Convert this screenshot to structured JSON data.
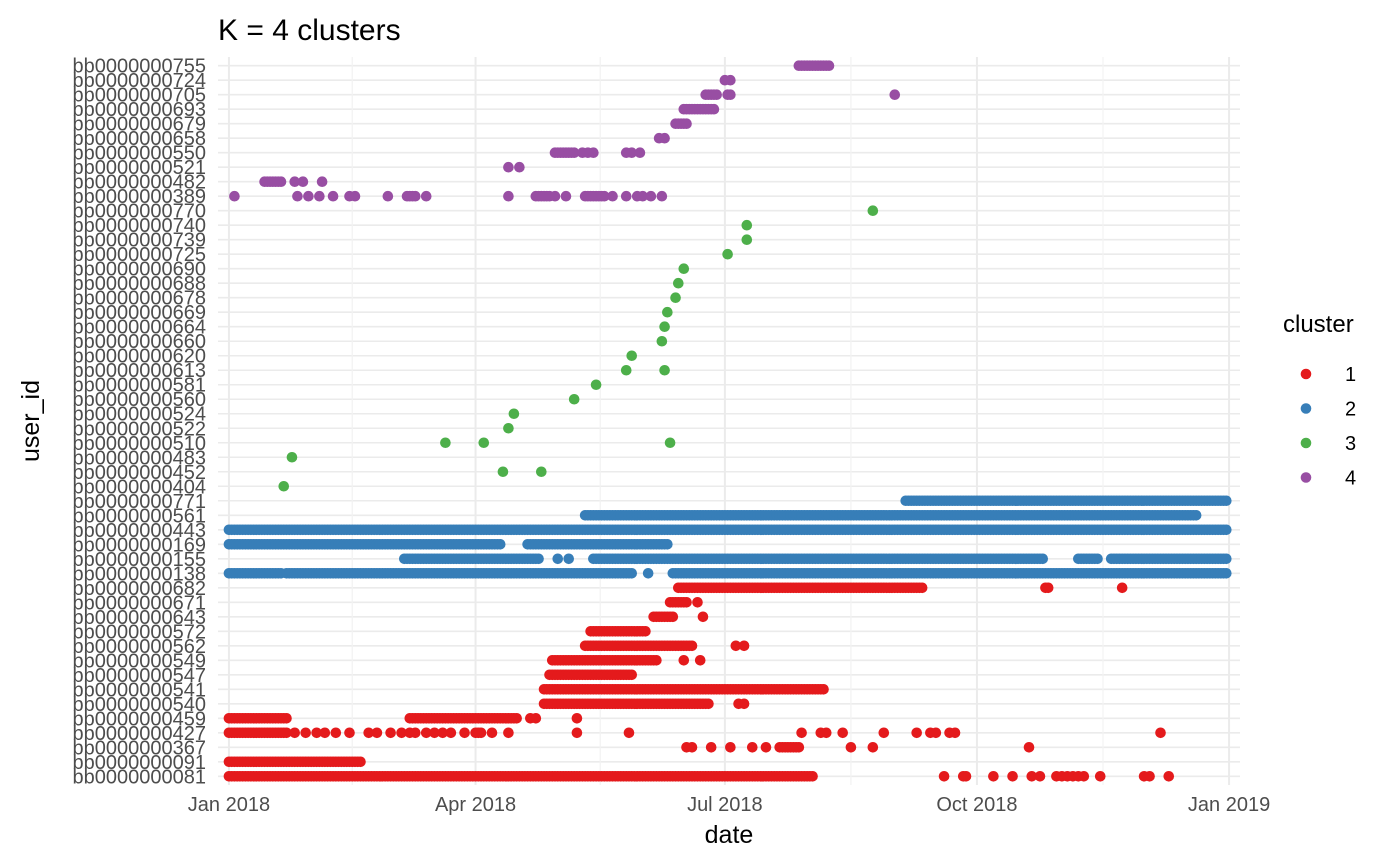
{
  "chart_data": {
    "type": "scatter",
    "title": "K = 4 clusters",
    "xlabel": "date",
    "ylabel": "user_id",
    "x_type": "date",
    "xlim": [
      "2017-12-28",
      "2019-01-05"
    ],
    "x_ticks": [
      {
        "date": "2018-01-01",
        "label": "Jan 2018"
      },
      {
        "date": "2018-04-01",
        "label": "Apr 2018"
      },
      {
        "date": "2018-07-01",
        "label": "Jul 2018"
      },
      {
        "date": "2018-10-01",
        "label": "Oct 2018"
      },
      {
        "date": "2019-01-01",
        "label": "Jan 2019"
      }
    ],
    "grid": true,
    "legend": {
      "title": "cluster",
      "position": "right"
    },
    "colors": {
      "1": "#E41A1C",
      "2": "#377EB8",
      "3": "#4DAF4A",
      "4": "#984EA3"
    },
    "categories": [
      "bb0000000081",
      "bb0000000091",
      "bb0000000367",
      "bb0000000427",
      "bb0000000459",
      "bb0000000540",
      "bb0000000541",
      "bb0000000547",
      "bb0000000549",
      "bb0000000562",
      "bb0000000572",
      "bb0000000643",
      "bb0000000671",
      "bb0000000682",
      "bb0000000138",
      "bb0000000155",
      "bb0000000169",
      "bb0000000443",
      "bb0000000561",
      "bb0000000771",
      "bb0000000404",
      "bb0000000452",
      "bb0000000483",
      "bb0000000510",
      "bb0000000522",
      "bb0000000524",
      "bb0000000560",
      "bb0000000581",
      "bb0000000613",
      "bb0000000620",
      "bb0000000660",
      "bb0000000664",
      "bb0000000669",
      "bb0000000678",
      "bb0000000688",
      "bb0000000690",
      "bb0000000725",
      "bb0000000739",
      "bb0000000740",
      "bb0000000770",
      "bb0000000389",
      "bb0000000482",
      "bb0000000521",
      "bb0000000550",
      "bb0000000658",
      "bb0000000679",
      "bb0000000693",
      "bb0000000705",
      "bb0000000724",
      "bb0000000755"
    ],
    "series": [
      {
        "name": "1",
        "cluster": "1",
        "rows": [
          {
            "user": "bb0000000081",
            "ranges": [
              [
                "2018-01-01",
                "2018-07-31"
              ]
            ],
            "points": [
              "2018-08-01",
              "2018-08-02",
              "2018-09-19",
              "2018-09-26",
              "2018-09-27",
              "2018-10-07",
              "2018-10-14",
              "2018-10-21",
              "2018-10-24",
              "2018-10-30",
              "2018-11-01",
              "2018-11-03",
              "2018-11-05",
              "2018-11-07",
              "2018-11-09",
              "2018-11-15",
              "2018-12-01",
              "2018-12-03",
              "2018-12-10"
            ]
          },
          {
            "user": "bb0000000091",
            "ranges": [
              [
                "2018-01-01",
                "2018-02-18"
              ]
            ],
            "points": []
          },
          {
            "user": "bb0000000367",
            "ranges": [
              [
                "2018-07-21",
                "2018-07-28"
              ]
            ],
            "points": [
              "2018-06-17",
              "2018-06-19",
              "2018-06-26",
              "2018-07-03",
              "2018-07-11",
              "2018-07-16",
              "2018-08-16",
              "2018-08-24",
              "2018-10-20"
            ]
          },
          {
            "user": "bb0000000427",
            "ranges": [
              [
                "2018-01-01",
                "2018-01-22"
              ],
              [
                "2018-04-01",
                "2018-04-03"
              ]
            ],
            "points": [
              "2018-01-25",
              "2018-01-29",
              "2018-02-02",
              "2018-02-05",
              "2018-02-09",
              "2018-02-14",
              "2018-02-21",
              "2018-02-24",
              "2018-03-01",
              "2018-03-05",
              "2018-03-08",
              "2018-03-10",
              "2018-03-14",
              "2018-03-17",
              "2018-03-20",
              "2018-03-23",
              "2018-03-28",
              "2018-04-07",
              "2018-04-13",
              "2018-05-08",
              "2018-05-27",
              "2018-07-29",
              "2018-08-05",
              "2018-08-07",
              "2018-08-13",
              "2018-08-28",
              "2018-09-09",
              "2018-09-14",
              "2018-09-16",
              "2018-09-21",
              "2018-09-23",
              "2018-12-07"
            ]
          },
          {
            "user": "bb0000000459",
            "ranges": [
              [
                "2018-01-01",
                "2018-01-22"
              ],
              [
                "2018-03-08",
                "2018-04-16"
              ]
            ],
            "points": [
              "2018-04-21",
              "2018-04-23",
              "2018-05-08"
            ]
          },
          {
            "user": "bb0000000540",
            "ranges": [
              [
                "2018-04-26",
                "2018-06-25"
              ]
            ],
            "points": [
              "2018-07-06",
              "2018-07-08"
            ]
          },
          {
            "user": "bb0000000541",
            "ranges": [
              [
                "2018-04-26",
                "2018-08-06"
              ]
            ],
            "points": []
          },
          {
            "user": "bb0000000547",
            "ranges": [
              [
                "2018-04-28",
                "2018-05-28"
              ]
            ],
            "points": []
          },
          {
            "user": "bb0000000549",
            "ranges": [
              [
                "2018-04-29",
                "2018-06-06"
              ]
            ],
            "points": [
              "2018-06-16",
              "2018-06-22"
            ]
          },
          {
            "user": "bb0000000562",
            "ranges": [
              [
                "2018-05-11",
                "2018-06-19"
              ]
            ],
            "points": [
              "2018-07-05",
              "2018-07-08"
            ]
          },
          {
            "user": "bb0000000572",
            "ranges": [
              [
                "2018-05-13",
                "2018-06-02"
              ]
            ],
            "points": []
          },
          {
            "user": "bb0000000643",
            "ranges": [
              [
                "2018-06-05",
                "2018-06-12"
              ]
            ],
            "points": [
              "2018-06-23"
            ]
          },
          {
            "user": "bb0000000671",
            "ranges": [
              [
                "2018-06-11",
                "2018-06-17"
              ]
            ],
            "points": [
              "2018-06-21"
            ]
          },
          {
            "user": "bb0000000682",
            "ranges": [
              [
                "2018-06-14",
                "2018-09-11"
              ]
            ],
            "points": [
              "2018-10-26",
              "2018-10-27",
              "2018-11-23"
            ]
          }
        ]
      },
      {
        "name": "2",
        "cluster": "2",
        "rows": [
          {
            "user": "bb0000000138",
            "ranges": [
              [
                "2018-01-01",
                "2018-01-20"
              ],
              [
                "2018-01-22",
                "2018-05-28"
              ],
              [
                "2018-06-12",
                "2018-12-31"
              ]
            ],
            "points": [
              "2018-06-03"
            ]
          },
          {
            "user": "bb0000000155",
            "ranges": [
              [
                "2018-03-06",
                "2018-04-24"
              ],
              [
                "2018-05-14",
                "2018-10-25"
              ],
              [
                "2018-11-07",
                "2018-11-14"
              ],
              [
                "2018-11-19",
                "2018-12-31"
              ]
            ],
            "points": [
              "2018-05-01",
              "2018-05-05"
            ]
          },
          {
            "user": "bb0000000169",
            "ranges": [
              [
                "2018-01-01",
                "2018-04-10"
              ],
              [
                "2018-04-20",
                "2018-06-10"
              ]
            ],
            "points": []
          },
          {
            "user": "bb0000000443",
            "ranges": [
              [
                "2018-01-01",
                "2018-12-31"
              ]
            ],
            "points": []
          },
          {
            "user": "bb0000000561",
            "ranges": [
              [
                "2018-05-11",
                "2018-12-20"
              ]
            ],
            "points": []
          },
          {
            "user": "bb0000000771",
            "ranges": [
              [
                "2018-09-05",
                "2018-12-31"
              ]
            ],
            "points": []
          }
        ]
      },
      {
        "name": "3",
        "cluster": "3",
        "rows": [
          {
            "user": "bb0000000404",
            "points": [
              "2018-01-21"
            ]
          },
          {
            "user": "bb0000000452",
            "points": [
              "2018-04-11",
              "2018-04-25"
            ]
          },
          {
            "user": "bb0000000483",
            "points": [
              "2018-01-24"
            ]
          },
          {
            "user": "bb0000000510",
            "points": [
              "2018-03-21",
              "2018-04-04",
              "2018-06-11"
            ]
          },
          {
            "user": "bb0000000522",
            "points": [
              "2018-04-13"
            ]
          },
          {
            "user": "bb0000000524",
            "points": [
              "2018-04-15"
            ]
          },
          {
            "user": "bb0000000560",
            "points": [
              "2018-05-07"
            ]
          },
          {
            "user": "bb0000000581",
            "points": [
              "2018-05-15"
            ]
          },
          {
            "user": "bb0000000613",
            "points": [
              "2018-05-26",
              "2018-06-09"
            ]
          },
          {
            "user": "bb0000000620",
            "points": [
              "2018-05-28"
            ]
          },
          {
            "user": "bb0000000660",
            "points": [
              "2018-06-08"
            ]
          },
          {
            "user": "bb0000000664",
            "points": [
              "2018-06-09"
            ]
          },
          {
            "user": "bb0000000669",
            "points": [
              "2018-06-10"
            ]
          },
          {
            "user": "bb0000000678",
            "points": [
              "2018-06-13"
            ]
          },
          {
            "user": "bb0000000688",
            "points": [
              "2018-06-14"
            ]
          },
          {
            "user": "bb0000000690",
            "points": [
              "2018-06-16"
            ]
          },
          {
            "user": "bb0000000725",
            "points": [
              "2018-07-02"
            ]
          },
          {
            "user": "bb0000000739",
            "points": [
              "2018-07-09"
            ]
          },
          {
            "user": "bb0000000740",
            "points": [
              "2018-07-09"
            ]
          },
          {
            "user": "bb0000000770",
            "points": [
              "2018-08-24"
            ]
          }
        ]
      },
      {
        "name": "4",
        "cluster": "4",
        "rows": [
          {
            "user": "bb0000000389",
            "ranges": [
              [
                "2018-03-07",
                "2018-03-10"
              ],
              [
                "2018-04-23",
                "2018-04-28"
              ],
              [
                "2018-05-11",
                "2018-05-18"
              ]
            ],
            "points": [
              "2018-01-03",
              "2018-01-26",
              "2018-01-30",
              "2018-02-03",
              "2018-02-08",
              "2018-02-14",
              "2018-02-16",
              "2018-02-28",
              "2018-03-14",
              "2018-04-13",
              "2018-04-30",
              "2018-05-04",
              "2018-05-21",
              "2018-05-26",
              "2018-05-30",
              "2018-06-01",
              "2018-06-04",
              "2018-06-08"
            ]
          },
          {
            "user": "bb0000000482",
            "ranges": [
              [
                "2018-01-14",
                "2018-01-20"
              ]
            ],
            "points": [
              "2018-01-25",
              "2018-01-28",
              "2018-02-04"
            ]
          },
          {
            "user": "bb0000000521",
            "points": [
              "2018-04-13",
              "2018-04-17"
            ]
          },
          {
            "user": "bb0000000550",
            "ranges": [
              [
                "2018-04-30",
                "2018-05-07"
              ]
            ],
            "points": [
              "2018-05-10",
              "2018-05-12",
              "2018-05-14",
              "2018-05-26",
              "2018-05-28",
              "2018-05-31"
            ]
          },
          {
            "user": "bb0000000658",
            "points": [
              "2018-06-07",
              "2018-06-09"
            ]
          },
          {
            "user": "bb0000000679",
            "ranges": [
              [
                "2018-06-13",
                "2018-06-17"
              ]
            ],
            "points": []
          },
          {
            "user": "bb0000000693",
            "ranges": [
              [
                "2018-06-16",
                "2018-06-27"
              ]
            ],
            "points": []
          },
          {
            "user": "bb0000000705",
            "ranges": [
              [
                "2018-06-24",
                "2018-06-28"
              ]
            ],
            "points": [
              "2018-07-02",
              "2018-07-03",
              "2018-09-01"
            ]
          },
          {
            "user": "bb0000000724",
            "points": [
              "2018-07-01",
              "2018-07-03"
            ]
          },
          {
            "user": "bb0000000755",
            "ranges": [
              [
                "2018-07-28",
                "2018-08-08"
              ]
            ],
            "points": []
          }
        ]
      }
    ]
  }
}
